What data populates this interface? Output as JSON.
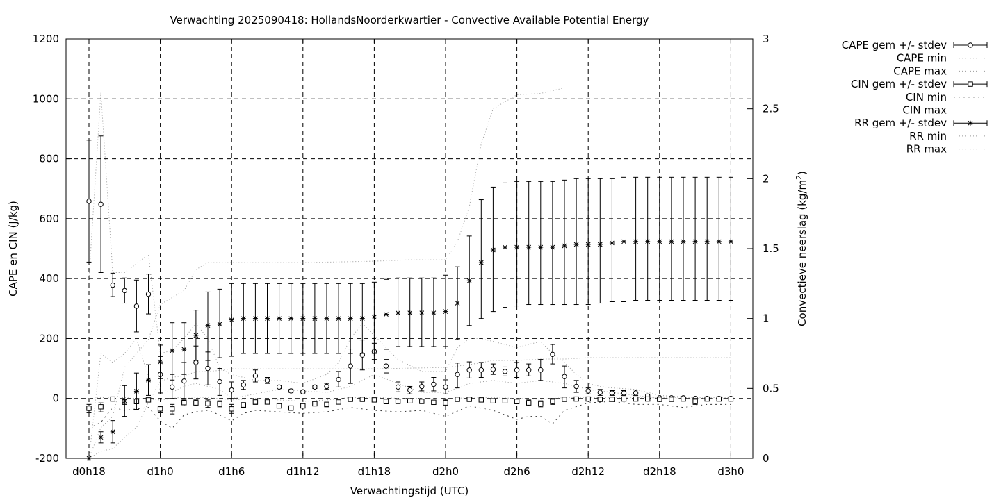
{
  "chart_data": {
    "type": "line",
    "title": "Verwachting 2025090418: HollandsNoorderkwartier - Convective Available Potential Energy",
    "xlabel": "Verwachtingstijd (UTC)",
    "ylabel": "CAPE en CIN (J/kg)",
    "y2label": "Convectieve neerslag (kg/m",
    "y2label_sup": "2",
    "y2label_end": ")",
    "x_unit": "hours since d0h18",
    "xlim": [
      -1,
      57
    ],
    "xticks": [
      {
        "x": 0,
        "label": "d0h18"
      },
      {
        "x": 6,
        "label": "d1h0"
      },
      {
        "x": 12,
        "label": "d1h6"
      },
      {
        "x": 18,
        "label": "d1h12"
      },
      {
        "x": 24,
        "label": "d1h18"
      },
      {
        "x": 30,
        "label": "d2h0"
      },
      {
        "x": 36,
        "label": "d2h6"
      },
      {
        "x": 42,
        "label": "d2h12"
      },
      {
        "x": 48,
        "label": "d2h18"
      },
      {
        "x": 54,
        "label": "d3h0"
      }
    ],
    "ylim": [
      -200,
      1200
    ],
    "yticks": [
      -200,
      0,
      200,
      400,
      600,
      800,
      1000,
      1200
    ],
    "y2lim": [
      0,
      3
    ],
    "y2ticks": [
      "0",
      "0.5",
      "1",
      "1.5",
      "2",
      "2.5",
      "3"
    ],
    "grid": true,
    "legend_position": "outside-right",
    "legend": [
      {
        "label": "CAPE gem +/- stdev",
        "style": "errorbar",
        "marker": "circle"
      },
      {
        "label": "CAPE min",
        "style": "dotted"
      },
      {
        "label": "CAPE max",
        "style": "dotted"
      },
      {
        "label": "CIN gem +/- stdev",
        "style": "errorbar",
        "marker": "square"
      },
      {
        "label": "CIN min",
        "style": "dotted-coarse"
      },
      {
        "label": "CIN max",
        "style": "dotted"
      },
      {
        "label": "RR gem +/- stdev",
        "style": "errorbar",
        "marker": "star"
      },
      {
        "label": "RR min",
        "style": "dotted"
      },
      {
        "label": "RR max",
        "style": "dotted"
      }
    ],
    "series": [
      {
        "name": "CAPE gem +/- stdev",
        "axis": "y",
        "marker": "circle",
        "x": [
          0,
          1,
          2,
          3,
          4,
          5,
          6,
          7,
          8,
          9,
          10,
          11,
          12,
          13,
          14,
          15,
          16,
          17,
          18,
          19,
          20,
          21,
          22,
          23,
          24,
          25,
          26,
          27,
          28,
          29,
          30,
          31,
          32,
          33,
          34,
          35,
          36,
          37,
          38,
          39,
          40,
          41,
          42,
          43,
          44,
          45,
          46,
          47,
          48,
          49,
          50,
          51,
          52,
          53,
          54
        ],
        "mean": [
          658,
          648,
          378,
          360,
          308,
          348,
          80,
          38,
          58,
          120,
          100,
          56,
          28,
          45,
          75,
          60,
          38,
          25,
          22,
          38,
          40,
          63,
          108,
          145,
          157,
          108,
          38,
          28,
          40,
          47,
          38,
          80,
          95,
          95,
          97,
          90,
          95,
          95,
          95,
          147,
          73,
          40,
          25,
          20,
          18,
          18,
          18,
          8,
          2,
          2,
          2,
          0,
          0,
          0,
          0
        ],
        "low": [
          455,
          420,
          340,
          318,
          222,
          282,
          18,
          0,
          0,
          65,
          45,
          10,
          0,
          30,
          55,
          50,
          33,
          20,
          18,
          33,
          30,
          38,
          50,
          95,
          130,
          85,
          22,
          15,
          25,
          25,
          15,
          35,
          68,
          70,
          80,
          75,
          70,
          75,
          60,
          115,
          35,
          20,
          15,
          10,
          10,
          10,
          10,
          5,
          0,
          0,
          0,
          0,
          0,
          0,
          0
        ],
        "high": [
          862,
          876,
          418,
          402,
          395,
          415,
          140,
          80,
          120,
          175,
          155,
          100,
          55,
          60,
          95,
          70,
          43,
          30,
          28,
          43,
          50,
          90,
          165,
          195,
          184,
          130,
          55,
          40,
          55,
          70,
          62,
          118,
          122,
          120,
          115,
          105,
          120,
          115,
          130,
          180,
          108,
          60,
          35,
          30,
          26,
          26,
          28,
          12,
          5,
          5,
          5,
          2,
          2,
          2,
          2
        ]
      },
      {
        "name": "CIN gem +/- stdev",
        "axis": "y",
        "marker": "square",
        "x": [
          0,
          1,
          2,
          3,
          4,
          5,
          6,
          7,
          8,
          9,
          10,
          11,
          12,
          13,
          14,
          15,
          16,
          17,
          18,
          19,
          20,
          21,
          22,
          23,
          24,
          25,
          26,
          27,
          28,
          29,
          30,
          31,
          32,
          33,
          34,
          35,
          36,
          37,
          38,
          39,
          40,
          41,
          42,
          43,
          44,
          45,
          46,
          47,
          48,
          49,
          50,
          51,
          52,
          53,
          54
        ],
        "mean": [
          -33,
          -28,
          -2,
          -12,
          -10,
          -5,
          -35,
          -35,
          -14,
          -15,
          -17,
          -18,
          -35,
          -22,
          -12,
          -12,
          -25,
          -32,
          -25,
          -18,
          -20,
          -12,
          -3,
          -3,
          -5,
          -10,
          -10,
          -8,
          -10,
          -13,
          -15,
          -3,
          -3,
          -5,
          -8,
          -8,
          -10,
          -15,
          -18,
          -10,
          -3,
          -2,
          -2,
          -3,
          -3,
          -2,
          -2,
          -2,
          -3,
          -3,
          -2,
          -10,
          -2,
          -2,
          -2
        ],
        "low": [
          -48,
          -45,
          -8,
          -20,
          -18,
          -12,
          -48,
          -52,
          -25,
          -25,
          -30,
          -28,
          -50,
          -30,
          -20,
          -18,
          -32,
          -40,
          -32,
          -25,
          -28,
          -18,
          -8,
          -8,
          -10,
          -18,
          -15,
          -12,
          -15,
          -20,
          -25,
          -8,
          -8,
          -10,
          -12,
          -15,
          -18,
          -25,
          -28,
          -20,
          -8,
          -5,
          -5,
          -6,
          -6,
          -5,
          -5,
          -5,
          -6,
          -6,
          -5,
          -20,
          -5,
          -5,
          -5
        ],
        "high": [
          -20,
          -15,
          2,
          -5,
          -3,
          0,
          -25,
          -20,
          -5,
          -5,
          -5,
          -8,
          -20,
          -14,
          -5,
          -6,
          -18,
          -25,
          -18,
          -12,
          -13,
          -6,
          1,
          1,
          0,
          -3,
          -5,
          -4,
          -5,
          -6,
          -5,
          2,
          2,
          0,
          -3,
          -2,
          -3,
          -5,
          -8,
          0,
          1,
          1,
          1,
          0,
          0,
          1,
          1,
          1,
          0,
          0,
          1,
          0,
          1,
          1,
          1
        ]
      },
      {
        "name": "RR gem +/- stdev",
        "axis": "y2",
        "marker": "star",
        "x": [
          0,
          1,
          2,
          3,
          4,
          5,
          6,
          7,
          8,
          9,
          10,
          11,
          12,
          13,
          14,
          15,
          16,
          17,
          18,
          19,
          20,
          21,
          22,
          23,
          24,
          25,
          26,
          27,
          28,
          29,
          30,
          31,
          32,
          33,
          34,
          35,
          36,
          37,
          38,
          39,
          40,
          41,
          42,
          43,
          44,
          45,
          46,
          47,
          48,
          49,
          50,
          51,
          52,
          53,
          54
        ],
        "mean": [
          0.0,
          0.15,
          0.19,
          0.41,
          0.48,
          0.56,
          0.69,
          0.77,
          0.78,
          0.88,
          0.95,
          0.96,
          0.99,
          1.0,
          1.0,
          1.0,
          1.0,
          1.0,
          1.0,
          1.0,
          1.0,
          1.0,
          1.0,
          1.0,
          1.01,
          1.03,
          1.04,
          1.04,
          1.04,
          1.04,
          1.05,
          1.11,
          1.27,
          1.4,
          1.49,
          1.51,
          1.51,
          1.51,
          1.51,
          1.51,
          1.52,
          1.53,
          1.53,
          1.53,
          1.54,
          1.55,
          1.55,
          1.55,
          1.55,
          1.55,
          1.55,
          1.55,
          1.55,
          1.55,
          1.55
        ],
        "low": [
          0.0,
          0.11,
          0.11,
          0.3,
          0.35,
          0.45,
          0.57,
          0.56,
          0.6,
          0.7,
          0.7,
          0.72,
          0.73,
          0.75,
          0.75,
          0.75,
          0.75,
          0.75,
          0.75,
          0.75,
          0.75,
          0.75,
          0.75,
          0.75,
          0.75,
          0.78,
          0.8,
          0.8,
          0.8,
          0.8,
          0.8,
          0.85,
          0.95,
          1.0,
          1.05,
          1.08,
          1.09,
          1.1,
          1.1,
          1.1,
          1.1,
          1.1,
          1.1,
          1.11,
          1.12,
          1.12,
          1.13,
          1.13,
          1.13,
          1.13,
          1.13,
          1.13,
          1.13,
          1.13,
          1.13
        ],
        "high": [
          0.0,
          0.19,
          0.27,
          0.52,
          0.61,
          0.67,
          0.81,
          0.97,
          0.97,
          1.06,
          1.19,
          1.21,
          1.25,
          1.25,
          1.25,
          1.25,
          1.25,
          1.25,
          1.25,
          1.25,
          1.25,
          1.25,
          1.25,
          1.25,
          1.26,
          1.28,
          1.29,
          1.29,
          1.29,
          1.29,
          1.31,
          1.37,
          1.59,
          1.85,
          1.94,
          1.97,
          1.98,
          1.98,
          1.98,
          1.98,
          1.99,
          2.0,
          2.0,
          2.0,
          2.0,
          2.01,
          2.01,
          2.01,
          2.01,
          2.01,
          2.01,
          2.01,
          2.01,
          2.01,
          2.01
        ]
      },
      {
        "name": "CAPE min",
        "axis": "y",
        "style": "dotted",
        "x": [
          0,
          1,
          2,
          3,
          4,
          5,
          6,
          7,
          8,
          9,
          10,
          11,
          12,
          16,
          20,
          22,
          24,
          28,
          30,
          32,
          34,
          36,
          38,
          40,
          42,
          44,
          48,
          54
        ],
        "y": [
          -200,
          150,
          120,
          150,
          200,
          70,
          30,
          20,
          40,
          50,
          40,
          30,
          0,
          30,
          20,
          40,
          80,
          20,
          20,
          50,
          60,
          50,
          60,
          50,
          30,
          20,
          0,
          0
        ]
      },
      {
        "name": "CAPE max",
        "axis": "y",
        "style": "dotted",
        "x": [
          0,
          1,
          2,
          3,
          4,
          5,
          6,
          7,
          8,
          9,
          10,
          11,
          12,
          14,
          16,
          18,
          20,
          21,
          22,
          23,
          24,
          26,
          28,
          30,
          31,
          32,
          33,
          34,
          35,
          36,
          37,
          38,
          39,
          40,
          41,
          42,
          43,
          44,
          46,
          48,
          50,
          52,
          54
        ],
        "y": [
          400,
          1020,
          420,
          420,
          450,
          480,
          150,
          160,
          200,
          250,
          200,
          100,
          80,
          60,
          60,
          50,
          80,
          120,
          200,
          250,
          210,
          130,
          90,
          90,
          170,
          200,
          200,
          190,
          180,
          170,
          180,
          190,
          150,
          120,
          80,
          50,
          40,
          35,
          30,
          10,
          5,
          5,
          5
        ]
      },
      {
        "name": "CIN min",
        "axis": "y",
        "style": "dotted-coarse",
        "x": [
          0,
          1,
          2,
          3,
          4,
          5,
          6,
          7,
          8,
          9,
          10,
          11,
          12,
          13,
          14,
          16,
          18,
          20,
          22,
          24,
          26,
          28,
          30,
          32,
          34,
          36,
          37,
          38,
          39,
          40,
          42,
          44,
          46,
          48,
          50,
          52,
          54
        ],
        "y": [
          -100,
          -80,
          -30,
          -40,
          -35,
          -30,
          -75,
          -100,
          -55,
          -45,
          -40,
          -55,
          -75,
          -50,
          -40,
          -45,
          -50,
          -45,
          -30,
          -40,
          -45,
          -40,
          -60,
          -25,
          -40,
          -70,
          -60,
          -60,
          -85,
          -40,
          -15,
          -10,
          -20,
          -20,
          -30,
          -20,
          -20
        ]
      },
      {
        "name": "CIN max",
        "axis": "y",
        "style": "dotted",
        "x": [
          0,
          2,
          4,
          6,
          8,
          10,
          12,
          14,
          16,
          18,
          20,
          22,
          24,
          26,
          28,
          30,
          32,
          34,
          36,
          38,
          40,
          42,
          44,
          46,
          48,
          50,
          52,
          54
        ],
        "y": [
          0,
          5,
          0,
          -5,
          5,
          3,
          -5,
          0,
          -5,
          -10,
          -5,
          3,
          5,
          0,
          0,
          -2,
          3,
          3,
          0,
          -3,
          3,
          3,
          3,
          3,
          3,
          3,
          3,
          3
        ]
      },
      {
        "name": "RR min",
        "axis": "y2",
        "style": "dotted",
        "x": [
          0,
          1,
          2,
          3,
          4,
          5,
          6,
          7,
          8,
          9,
          10,
          12,
          18,
          24,
          30,
          32,
          34,
          36,
          38,
          40,
          42,
          44,
          46,
          48,
          50,
          52,
          54
        ],
        "y": [
          0.0,
          0.05,
          0.07,
          0.15,
          0.22,
          0.4,
          0.55,
          0.58,
          0.59,
          0.62,
          0.62,
          0.64,
          0.64,
          0.64,
          0.65,
          0.67,
          0.7,
          0.7,
          0.71,
          0.71,
          0.72,
          0.72,
          0.72,
          0.72,
          0.72,
          0.72,
          0.72
        ]
      },
      {
        "name": "RR max",
        "axis": "y2",
        "style": "dotted",
        "x": [
          0,
          1,
          2,
          3,
          4,
          5,
          6,
          7,
          8,
          9,
          10,
          11,
          12,
          18,
          24,
          27,
          30,
          31,
          32,
          33,
          34,
          36,
          38,
          40,
          42,
          44,
          46,
          48,
          50,
          52,
          54
        ],
        "y": [
          0.0,
          0.22,
          0.3,
          0.65,
          0.75,
          0.85,
          1.1,
          1.15,
          1.2,
          1.35,
          1.4,
          1.4,
          1.4,
          1.4,
          1.41,
          1.42,
          1.42,
          1.55,
          1.8,
          2.25,
          2.5,
          2.6,
          2.61,
          2.65,
          2.65,
          2.65,
          2.65,
          2.65,
          2.65,
          2.65,
          2.65
        ]
      }
    ]
  }
}
